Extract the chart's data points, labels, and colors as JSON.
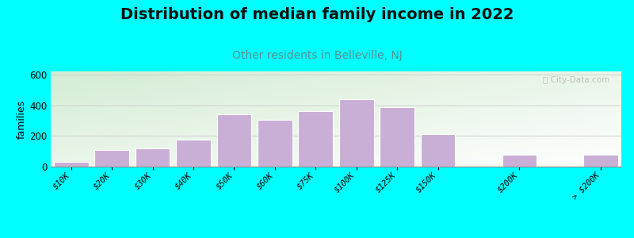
{
  "title": "Distribution of median family income in 2022",
  "subtitle": "Other residents in Belleville, NJ",
  "ylabel": "families",
  "background_outer": "#00FFFF",
  "background_inner_top_left": "#d4ecd4",
  "background_inner_bottom_right": "#ffffff",
  "bar_color": "#c9aed6",
  "bar_edge_color": "#ffffff",
  "categories": [
    "$10K",
    "$20K",
    "$30K",
    "$40K",
    "$50K",
    "$60K",
    "$75K",
    "$100K",
    "$125K",
    "$150K",
    "$200K",
    "> $200K"
  ],
  "values": [
    30,
    110,
    120,
    175,
    340,
    305,
    360,
    440,
    390,
    210,
    80,
    75
  ],
  "bar_positions": [
    0,
    1,
    2,
    3,
    4,
    5,
    6,
    7,
    8,
    9,
    11,
    13
  ],
  "ylim": [
    0,
    620
  ],
  "yticks": [
    0,
    200,
    400,
    600
  ],
  "title_fontsize": 14,
  "subtitle_fontsize": 10,
  "subtitle_color": "#5a8f8f",
  "ylabel_fontsize": 9,
  "tick_label_fontsize": 7.5,
  "watermark": "ⓘ City-Data.com"
}
